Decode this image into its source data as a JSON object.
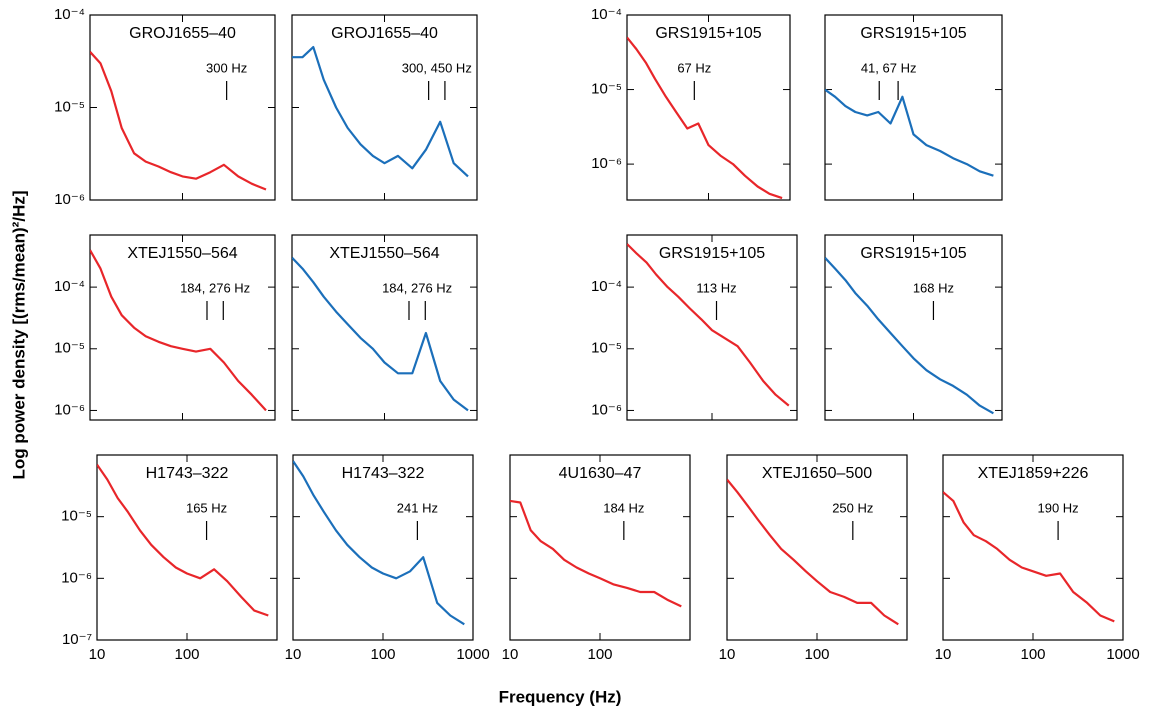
{
  "axis_labels": {
    "x": "Frequency (Hz)",
    "y": "Log power density [(rms/mean)²/Hz]"
  },
  "chart_data": [
    {
      "type": "line",
      "title": "GROJ1655–40",
      "x": [
        10,
        13,
        17,
        22,
        30,
        40,
        55,
        75,
        100,
        140,
        200,
        280,
        400,
        560,
        800
      ],
      "series": [
        {
          "color": "#e8262a",
          "values": [
            4e-05,
            3e-05,
            1.5e-05,
            6e-06,
            3.2e-06,
            2.6e-06,
            2.3e-06,
            2e-06,
            1.8e-06,
            1.7e-06,
            2e-06,
            2.4e-06,
            1.8e-06,
            1.5e-06,
            1.3e-06
          ]
        }
      ],
      "xlim": [
        10,
        1000
      ],
      "ylim": [
        1e-06,
        0.0001
      ],
      "xticks": [
        10,
        100
      ],
      "yticks": [
        {
          "value": 0.0001,
          "label": "10⁻⁴"
        },
        {
          "value": 1e-05,
          "label": "10⁻⁵"
        },
        {
          "value": 1e-06,
          "label": "10⁻⁶"
        }
      ],
      "log_x": true,
      "log_y": true,
      "show_xtick_labels": false,
      "show_ytick_labels": true,
      "annotation": {
        "text": "300 Hz",
        "x": [
          300
        ]
      }
    },
    {
      "type": "line",
      "title": "GROJ1655–40",
      "x": [
        10,
        13,
        17,
        22,
        30,
        40,
        55,
        75,
        100,
        140,
        200,
        280,
        400,
        560,
        800
      ],
      "series": [
        {
          "color": "#1b6fba",
          "values": [
            3.5e-05,
            3.5e-05,
            4.5e-05,
            2e-05,
            1e-05,
            6e-06,
            4e-06,
            3e-06,
            2.5e-06,
            3e-06,
            2.2e-06,
            3.5e-06,
            7e-06,
            2.5e-06,
            1.8e-06
          ]
        }
      ],
      "xlim": [
        10,
        1000
      ],
      "ylim": [
        1e-06,
        0.0001
      ],
      "xticks": [
        10,
        100
      ],
      "yticks": [
        0.0001,
        1e-05,
        1e-06
      ],
      "log_x": true,
      "log_y": true,
      "show_xtick_labels": false,
      "show_ytick_labels": false,
      "annotation": {
        "text": "300, 450 Hz",
        "x": [
          300,
          450
        ]
      }
    },
    {
      "type": "line",
      "title": "GRS1915+105",
      "x": [
        10,
        13,
        17,
        22,
        30,
        40,
        55,
        75,
        100,
        140,
        200,
        280,
        400,
        560,
        800
      ],
      "series": [
        {
          "color": "#e8262a",
          "values": [
            5e-05,
            3.5e-05,
            2.3e-05,
            1.4e-05,
            8e-06,
            5e-06,
            3e-06,
            3.5e-06,
            1.8e-06,
            1.3e-06,
            1e-06,
            7e-07,
            5e-07,
            4e-07,
            3.5e-07
          ]
        }
      ],
      "xlim": [
        10,
        1000
      ],
      "ylim": [
        3.3e-07,
        0.0001
      ],
      "xticks": [
        10,
        100
      ],
      "yticks": [
        {
          "value": 0.0001,
          "label": "10⁻⁴"
        },
        {
          "value": 1e-05,
          "label": "10⁻⁵"
        },
        {
          "value": 1e-06,
          "label": "10⁻⁶"
        }
      ],
      "log_x": true,
      "log_y": true,
      "show_xtick_labels": false,
      "show_ytick_labels": true,
      "annotation": {
        "text": "67 Hz",
        "x": [
          67
        ]
      }
    },
    {
      "type": "line",
      "title": "GRS1915+105",
      "x": [
        10,
        13,
        17,
        22,
        30,
        40,
        55,
        75,
        100,
        140,
        200,
        280,
        400,
        560,
        800
      ],
      "series": [
        {
          "color": "#1b6fba",
          "values": [
            1e-05,
            8e-06,
            6e-06,
            5e-06,
            4.5e-06,
            5e-06,
            3.5e-06,
            8e-06,
            2.5e-06,
            1.8e-06,
            1.5e-06,
            1.2e-06,
            1e-06,
            8e-07,
            7e-07
          ]
        }
      ],
      "xlim": [
        10,
        1000
      ],
      "ylim": [
        3.3e-07,
        0.0001
      ],
      "xticks": [
        10,
        100
      ],
      "yticks": [
        0.0001,
        1e-05,
        1e-06
      ],
      "log_x": true,
      "log_y": true,
      "show_xtick_labels": false,
      "show_ytick_labels": false,
      "annotation": {
        "text": "41, 67 Hz",
        "x": [
          41,
          67
        ]
      }
    },
    {
      "type": "line",
      "title": "XTEJ1550–564",
      "x": [
        10,
        13,
        17,
        22,
        30,
        40,
        55,
        75,
        100,
        140,
        200,
        280,
        400,
        560,
        800
      ],
      "series": [
        {
          "color": "#e8262a",
          "values": [
            0.0004,
            0.0002,
            7e-05,
            3.5e-05,
            2.2e-05,
            1.6e-05,
            1.3e-05,
            1.1e-05,
            1e-05,
            9e-06,
            1e-05,
            6e-06,
            3e-06,
            1.8e-06,
            1e-06
          ]
        }
      ],
      "xlim": [
        10,
        1000
      ],
      "ylim": [
        7e-07,
        0.0007
      ],
      "xticks": [
        10,
        100
      ],
      "yticks": [
        {
          "value": 0.0001,
          "label": "10⁻⁴"
        },
        {
          "value": 1e-05,
          "label": "10⁻⁵"
        },
        {
          "value": 1e-06,
          "label": "10⁻⁶"
        }
      ],
      "log_x": true,
      "log_y": true,
      "show_xtick_labels": false,
      "show_ytick_labels": true,
      "annotation": {
        "text": "184, 276 Hz",
        "x": [
          184,
          276
        ]
      }
    },
    {
      "type": "line",
      "title": "XTEJ1550–564",
      "x": [
        10,
        13,
        17,
        22,
        30,
        40,
        55,
        75,
        100,
        140,
        200,
        280,
        400,
        560,
        800
      ],
      "series": [
        {
          "color": "#1b6fba",
          "values": [
            0.0003,
            0.0002,
            0.00012,
            7e-05,
            4e-05,
            2.5e-05,
            1.5e-05,
            1e-05,
            6e-06,
            4e-06,
            4e-06,
            1.8e-05,
            3e-06,
            1.5e-06,
            1e-06
          ]
        }
      ],
      "xlim": [
        10,
        1000
      ],
      "ylim": [
        7e-07,
        0.0007
      ],
      "xticks": [
        10,
        100
      ],
      "yticks": [
        0.0001,
        1e-05,
        1e-06
      ],
      "log_x": true,
      "log_y": true,
      "show_xtick_labels": false,
      "show_ytick_labels": false,
      "annotation": {
        "text": "184, 276 Hz",
        "x": [
          184,
          276
        ]
      }
    },
    {
      "type": "line",
      "title": "GRS1915+105",
      "x": [
        10,
        13,
        17,
        22,
        30,
        40,
        55,
        75,
        100,
        140,
        200,
        280,
        400,
        560,
        800
      ],
      "series": [
        {
          "color": "#e8262a",
          "values": [
            0.0005,
            0.00035,
            0.00025,
            0.00016,
            0.0001,
            7e-05,
            4.5e-05,
            3e-05,
            2e-05,
            1.5e-05,
            1.1e-05,
            6e-06,
            3e-06,
            1.8e-06,
            1.2e-06
          ]
        }
      ],
      "xlim": [
        10,
        1000
      ],
      "ylim": [
        7e-07,
        0.0007
      ],
      "xticks": [
        10,
        100
      ],
      "yticks": [
        {
          "value": 0.0001,
          "label": "10⁻⁴"
        },
        {
          "value": 1e-05,
          "label": "10⁻⁵"
        },
        {
          "value": 1e-06,
          "label": "10⁻⁶"
        }
      ],
      "log_x": true,
      "log_y": true,
      "show_xtick_labels": false,
      "show_ytick_labels": true,
      "annotation": {
        "text": "113 Hz",
        "x": [
          113
        ]
      }
    },
    {
      "type": "line",
      "title": "GRS1915+105",
      "x": [
        10,
        13,
        17,
        22,
        30,
        40,
        55,
        75,
        100,
        140,
        200,
        280,
        400,
        560,
        800
      ],
      "series": [
        {
          "color": "#1b6fba",
          "values": [
            0.0003,
            0.0002,
            0.00013,
            8e-05,
            5e-05,
            3e-05,
            1.8e-05,
            1.1e-05,
            7e-06,
            4.5e-06,
            3.2e-06,
            2.5e-06,
            1.8e-06,
            1.2e-06,
            9e-07
          ]
        }
      ],
      "xlim": [
        10,
        1000
      ],
      "ylim": [
        7e-07,
        0.0007
      ],
      "xticks": [
        10,
        100
      ],
      "yticks": [
        0.0001,
        1e-05,
        1e-06
      ],
      "log_x": true,
      "log_y": true,
      "show_xtick_labels": false,
      "show_ytick_labels": false,
      "annotation": {
        "text": "168 Hz",
        "x": [
          168
        ]
      }
    },
    {
      "type": "line",
      "title": "H1743–322",
      "x": [
        10,
        13,
        17,
        22,
        30,
        40,
        55,
        75,
        100,
        140,
        200,
        280,
        400,
        560,
        800
      ],
      "series": [
        {
          "color": "#e8262a",
          "values": [
            7e-05,
            4e-05,
            2e-05,
            1.2e-05,
            6e-06,
            3.5e-06,
            2.2e-06,
            1.5e-06,
            1.2e-06,
            1e-06,
            1.4e-06,
            9e-07,
            5e-07,
            3e-07,
            2.5e-07
          ]
        }
      ],
      "xlim": [
        10,
        1000
      ],
      "ylim": [
        1e-07,
        0.0001
      ],
      "xticks": [
        10,
        100
      ],
      "yticks": [
        {
          "value": 1e-05,
          "label": "10⁻⁵"
        },
        {
          "value": 1e-06,
          "label": "10⁻⁶"
        },
        {
          "value": 1e-07,
          "label": "10⁻⁷"
        }
      ],
      "log_x": true,
      "log_y": true,
      "show_xtick_labels": true,
      "show_ytick_labels": true,
      "annotation": {
        "text": "165 Hz",
        "x": [
          165
        ]
      }
    },
    {
      "type": "line",
      "title": "H1743–322",
      "x": [
        10,
        13,
        17,
        22,
        30,
        40,
        55,
        75,
        100,
        140,
        200,
        280,
        400,
        560,
        800
      ],
      "series": [
        {
          "color": "#1b6fba",
          "values": [
            8e-05,
            4.5e-05,
            2.2e-05,
            1.2e-05,
            6e-06,
            3.5e-06,
            2.2e-06,
            1.5e-06,
            1.2e-06,
            1e-06,
            1.3e-06,
            2.2e-06,
            4e-07,
            2.5e-07,
            1.8e-07
          ]
        }
      ],
      "xlim": [
        10,
        1000
      ],
      "ylim": [
        1e-07,
        0.0001
      ],
      "xticks": [
        10,
        100,
        1000
      ],
      "yticks": [
        1e-05,
        1e-06,
        1e-07
      ],
      "log_x": true,
      "log_y": true,
      "show_xtick_labels": true,
      "show_ytick_labels": false,
      "annotation": {
        "text": "241 Hz",
        "x": [
          241
        ]
      }
    },
    {
      "type": "line",
      "title": "4U1630–47",
      "x": [
        10,
        13,
        17,
        22,
        30,
        40,
        55,
        75,
        100,
        140,
        200,
        280,
        400,
        560,
        800
      ],
      "series": [
        {
          "color": "#e8262a",
          "values": [
            1.8e-05,
            1.7e-05,
            6e-06,
            4e-06,
            3e-06,
            2e-06,
            1.5e-06,
            1.2e-06,
            1e-06,
            8e-07,
            7e-07,
            6e-07,
            6e-07,
            4.5e-07,
            3.5e-07
          ]
        }
      ],
      "xlim": [
        10,
        1000
      ],
      "ylim": [
        1e-07,
        0.0001
      ],
      "xticks": [
        10,
        100
      ],
      "yticks": [
        1e-05,
        1e-06,
        1e-07
      ],
      "log_x": true,
      "log_y": true,
      "show_xtick_labels": true,
      "show_ytick_labels": false,
      "annotation": {
        "text": "184 Hz",
        "x": [
          184
        ]
      }
    },
    {
      "type": "line",
      "title": "XTEJ1650–500",
      "x": [
        10,
        13,
        17,
        22,
        30,
        40,
        55,
        75,
        100,
        140,
        200,
        280,
        400,
        560,
        800
      ],
      "series": [
        {
          "color": "#e8262a",
          "values": [
            4e-05,
            2.5e-05,
            1.5e-05,
            9e-06,
            5e-06,
            3e-06,
            2e-06,
            1.3e-06,
            9e-07,
            6e-07,
            5e-07,
            4e-07,
            4e-07,
            2.5e-07,
            1.8e-07
          ]
        }
      ],
      "xlim": [
        10,
        1000
      ],
      "ylim": [
        1e-07,
        0.0001
      ],
      "xticks": [
        10,
        100
      ],
      "yticks": [
        1e-05,
        1e-06,
        1e-07
      ],
      "log_x": true,
      "log_y": true,
      "show_xtick_labels": true,
      "show_ytick_labels": false,
      "annotation": {
        "text": "250 Hz",
        "x": [
          250
        ]
      }
    },
    {
      "type": "line",
      "title": "XTEJ1859+226",
      "x": [
        10,
        13,
        17,
        22,
        30,
        40,
        55,
        75,
        100,
        140,
        200,
        280,
        400,
        560,
        800
      ],
      "series": [
        {
          "color": "#e8262a",
          "values": [
            2.5e-05,
            1.8e-05,
            8e-06,
            5e-06,
            4e-06,
            3e-06,
            2e-06,
            1.5e-06,
            1.3e-06,
            1.1e-06,
            1.2e-06,
            6e-07,
            4e-07,
            2.5e-07,
            2e-07
          ]
        }
      ],
      "xlim": [
        10,
        1000
      ],
      "ylim": [
        1e-07,
        0.0001
      ],
      "xticks": [
        10,
        100,
        1000
      ],
      "yticks": [
        1e-05,
        1e-06,
        1e-07
      ],
      "log_x": true,
      "log_y": true,
      "show_xtick_labels": true,
      "show_ytick_labels": false,
      "annotation": {
        "text": "190 Hz",
        "x": [
          190
        ]
      }
    }
  ]
}
